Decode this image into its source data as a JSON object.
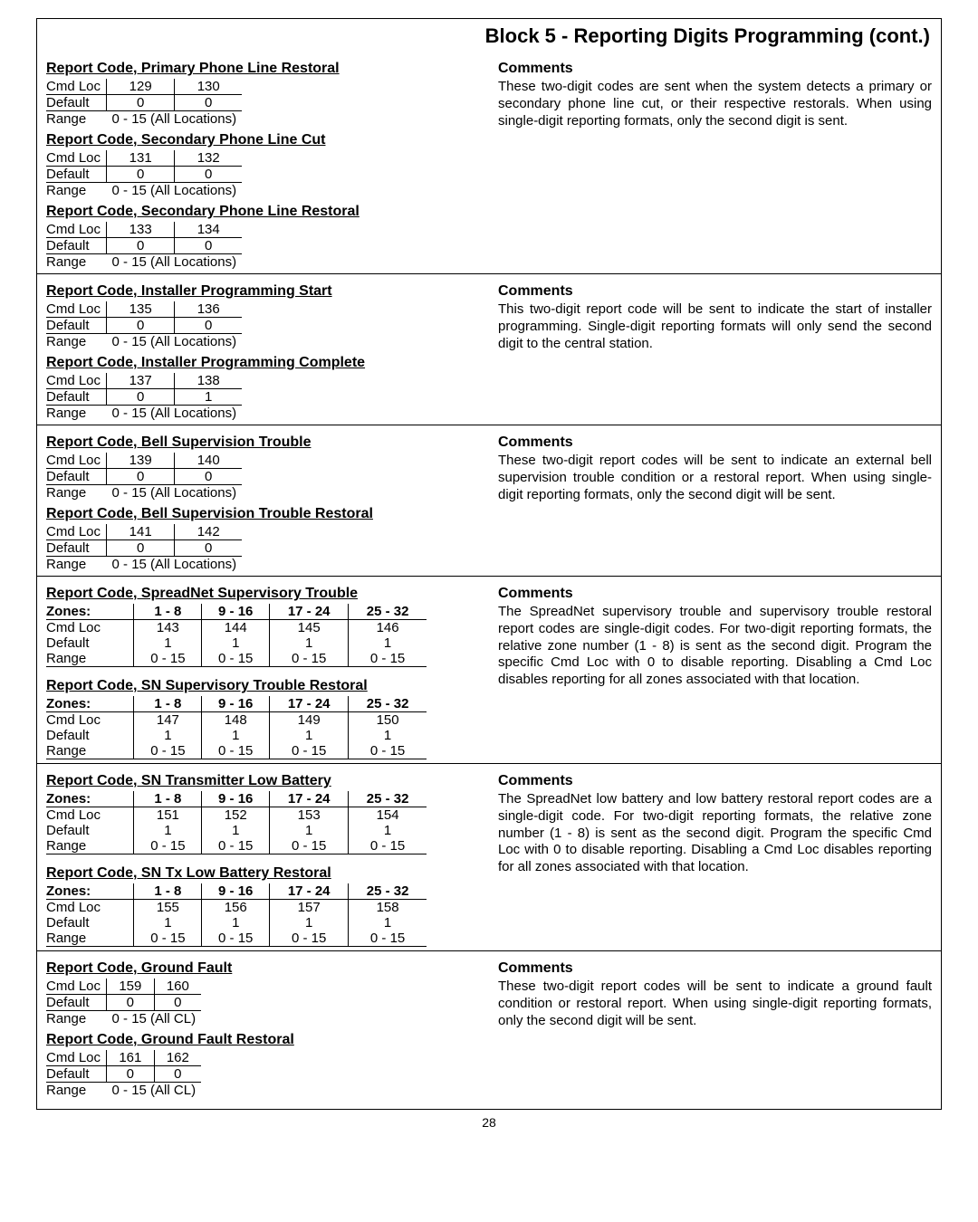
{
  "title": "Block 5 - Reporting Digits Programming (cont.)",
  "page_number": "28",
  "sections": [
    {
      "left": [
        {
          "title": "Report Code, Primary Phone Line Restoral",
          "type": "mini2",
          "cmdloc": [
            "129",
            "130"
          ],
          "default": [
            "0",
            "0"
          ],
          "range": "0 - 15  (All Locations)"
        },
        {
          "title": "Report Code, Secondary Phone Line Cut",
          "type": "mini2",
          "cmdloc": [
            "131",
            "132"
          ],
          "default": [
            "0",
            "0"
          ],
          "range": "0 - 15  (All Locations)"
        },
        {
          "title": "Report Code, Secondary Phone Line Restoral",
          "type": "mini2",
          "cmdloc": [
            "133",
            "134"
          ],
          "default": [
            "0",
            "0"
          ],
          "range": "0 - 15  (All Locations)"
        }
      ],
      "comments_h": "Comments",
      "comments": "These two-digit codes are sent when the system detects a primary or secondary phone line cut, or their respective restorals. When using single-digit reporting formats, only the second digit is sent."
    },
    {
      "left": [
        {
          "title": "Report Code, Installer Programming Start",
          "type": "mini2",
          "cmdloc": [
            "135",
            "136"
          ],
          "default": [
            "0",
            "0"
          ],
          "range": "0 - 15  (All Locations)"
        },
        {
          "title": "Report Code, Installer Programming Complete",
          "type": "mini2",
          "cmdloc": [
            "137",
            "138"
          ],
          "default": [
            "0",
            "1"
          ],
          "range": "0 - 15  (All Locations)"
        }
      ],
      "comments_h": "Comments",
      "comments": "This two-digit report code will be sent to indicate the start of installer programming. Single-digit reporting formats will only send the second digit to the central station."
    },
    {
      "left": [
        {
          "title": "Report Code, Bell Supervision Trouble",
          "type": "mini2",
          "cmdloc": [
            "139",
            "140"
          ],
          "default": [
            "0",
            "0"
          ],
          "range": "0 - 15  (All Locations)"
        },
        {
          "title": "Report Code, Bell Supervision Trouble Restoral",
          "type": "mini2",
          "cmdloc": [
            "141",
            "142"
          ],
          "default": [
            "0",
            "0"
          ],
          "range": "0 - 15  (All Locations)"
        }
      ],
      "comments_h": "Comments",
      "comments": "These two-digit report codes will be sent to indicate an external bell supervision trouble condition or a restoral report. When using single-digit reporting formats, only the second digit will be sent."
    },
    {
      "left": [
        {
          "title": "Report Code, SpreadNet Supervisory Trouble",
          "type": "zone",
          "zones": [
            "1 - 8",
            "9 - 16",
            "17 - 24",
            "25 - 32"
          ],
          "cmdloc": [
            "143",
            "144",
            "145",
            "146"
          ],
          "default": [
            "1",
            "1",
            "1",
            "1"
          ],
          "range": [
            "0 - 15",
            "0 - 15",
            "0 - 15",
            "0 - 15"
          ]
        },
        {
          "title": "Report Code, SN Supervisory Trouble Restoral",
          "type": "zone",
          "zones": [
            "1 - 8",
            "9 - 16",
            "17 - 24",
            "25 - 32"
          ],
          "cmdloc": [
            "147",
            "148",
            "149",
            "150"
          ],
          "default": [
            "1",
            "1",
            "1",
            "1"
          ],
          "range": [
            "0 - 15",
            "0 - 15",
            "0 - 15",
            "0 - 15"
          ]
        }
      ],
      "comments_h": "Comments",
      "comments": "The SpreadNet supervisory trouble and supervisory trouble restoral report codes are single-digit codes. For two-digit reporting formats, the relative zone number (1 - 8) is sent as the second digit. Program the specific Cmd Loc with 0 to disable reporting. Disabling a Cmd Loc disables reporting for all zones associated with that location."
    },
    {
      "left": [
        {
          "title": "Report Code, SN Transmitter Low Battery",
          "type": "zone",
          "zones": [
            "1 - 8",
            "9 - 16",
            "17 - 24",
            "25 - 32"
          ],
          "cmdloc": [
            "151",
            "152",
            "153",
            "154"
          ],
          "default": [
            "1",
            "1",
            "1",
            "1"
          ],
          "range": [
            "0 - 15",
            "0 - 15",
            "0 - 15",
            "0 - 15"
          ]
        },
        {
          "title": "Report Code, SN Tx Low Battery Restoral",
          "type": "zone",
          "zones": [
            "1 - 8",
            "9 - 16",
            "17 - 24",
            "25 - 32"
          ],
          "cmdloc": [
            "155",
            "156",
            "157",
            "158"
          ],
          "default": [
            "1",
            "1",
            "1",
            "1"
          ],
          "range": [
            "0 - 15",
            "0 - 15",
            "0 - 15",
            "0 - 15"
          ]
        }
      ],
      "comments_h": "Comments",
      "comments": "The SpreadNet low battery and low battery restoral report codes are a single-digit code. For two-digit reporting formats, the relative zone number (1 - 8) is sent as the second digit. Program the specific Cmd Loc with 0 to disable reporting. Disabling a Cmd Loc disables reporting for all zones associated with that location."
    },
    {
      "left": [
        {
          "title": "Report Code, Ground Fault",
          "type": "mini2",
          "cmdloc": [
            "159",
            "160"
          ],
          "default": [
            "0",
            "0"
          ],
          "range": "0 - 15  (All CL)"
        },
        {
          "title": "Report Code, Ground Fault Restoral",
          "type": "mini2",
          "cmdloc": [
            "161",
            "162"
          ],
          "default": [
            "0",
            "0"
          ],
          "range": "0 - 15  (All CL)"
        }
      ],
      "comments_h": "Comments",
      "comments": "These two-digit report codes will be sent to indicate a ground fault condition or restoral report. When using single-digit reporting formats, only the second digit will be sent."
    }
  ],
  "labels": {
    "zones": "Zones:",
    "cmdloc": "Cmd Loc",
    "default": "Default",
    "range": "Range"
  }
}
